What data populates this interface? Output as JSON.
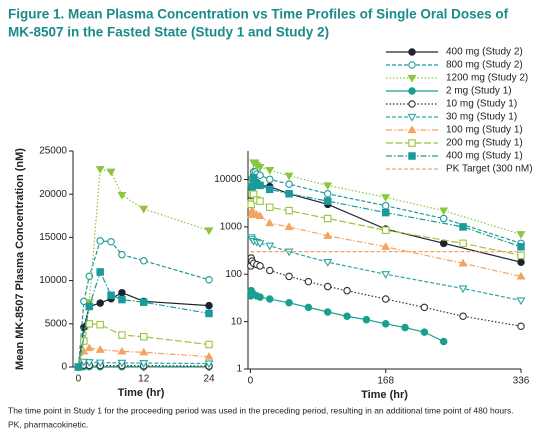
{
  "title_lines": [
    "Figure 1. Mean Plasma Concentration vs Time Profiles of Single Oral Doses of",
    "MK-8507 in the Fasted State (Study 1 and Study 2)"
  ],
  "footnote_lines": [
    "The time point in Study 1 for the proceeding period was used in the preceding period, resulting in an additional time point of 480 hours.",
    "PK, pharmacokinetic."
  ],
  "chart_data": [
    {
      "type": "line",
      "ylabel": "Mean MK-8507 Plasma Concentration (nM)",
      "xlabel": "Time (hr)",
      "xlim": [
        -1,
        24
      ],
      "xticks": [
        0,
        12,
        24
      ],
      "ylim": [
        0,
        25000
      ],
      "yticks": [
        0,
        5000,
        10000,
        15000,
        20000,
        25000
      ],
      "log": false,
      "series": [
        {
          "color": "#1d2430",
          "marker": "circle",
          "style": "solid",
          "x": [
            0,
            1,
            2,
            4,
            6,
            8,
            12,
            24
          ],
          "values": [
            0,
            4600,
            7000,
            7400,
            7900,
            8600,
            7600,
            7100
          ]
        },
        {
          "color": "#1b9a9a",
          "marker": "circle-open",
          "style": "dashed",
          "x": [
            0,
            1,
            2,
            4,
            6,
            8,
            12,
            24
          ],
          "values": [
            0,
            7600,
            10500,
            14600,
            14500,
            13000,
            12300,
            10100
          ]
        },
        {
          "color": "#8cc63f",
          "marker": "tri-down",
          "style": "dotted",
          "x": [
            0,
            2,
            4,
            6,
            8,
            12,
            24
          ],
          "values": [
            0,
            7500,
            22900,
            22600,
            19900,
            18300,
            15800
          ]
        },
        {
          "color": "#17a08f",
          "marker": "circle",
          "style": "solid",
          "x": [
            0,
            0.5,
            1,
            2,
            4,
            8,
            12,
            24
          ],
          "values": [
            0,
            35,
            45,
            40,
            38,
            35,
            33,
            30
          ]
        },
        {
          "color": "#333333",
          "marker": "circle-open",
          "style": "dotted",
          "x": [
            0,
            0.5,
            1,
            2,
            4,
            8,
            12,
            24
          ],
          "values": [
            0,
            150,
            220,
            190,
            170,
            160,
            150,
            120
          ]
        },
        {
          "color": "#2aa6a6",
          "marker": "tri-down-open",
          "style": "dashed",
          "x": [
            0,
            1,
            2,
            4,
            8,
            12,
            24
          ],
          "values": [
            0,
            600,
            550,
            500,
            480,
            450,
            400
          ]
        },
        {
          "color": "#f4a460",
          "marker": "tri-up",
          "style": "dashdot",
          "x": [
            0,
            1,
            2,
            4,
            8,
            12,
            24
          ],
          "values": [
            0,
            1800,
            2200,
            2000,
            1800,
            1700,
            1200
          ]
        },
        {
          "color": "#9bc53d",
          "marker": "square-open",
          "style": "longdash",
          "x": [
            0,
            1,
            2,
            4,
            8,
            12,
            24
          ],
          "values": [
            0,
            3000,
            5000,
            4900,
            3700,
            3500,
            2600
          ]
        },
        {
          "color": "#1a9b9b",
          "marker": "square",
          "style": "dashdot",
          "x": [
            0,
            2,
            4,
            6,
            8,
            12,
            24
          ],
          "values": [
            0,
            7000,
            11000,
            8300,
            7800,
            7500,
            6200
          ]
        }
      ]
    },
    {
      "type": "line",
      "xlabel": "Time (hr)",
      "legend": "upper right",
      "xlim": [
        -3,
        336
      ],
      "xticks": [
        0,
        168,
        336
      ],
      "ylim": [
        1,
        40000
      ],
      "yticks": [
        1,
        10,
        100,
        1000,
        10000
      ],
      "log": true,
      "series": [
        {
          "name": "400 mg (Study 2)",
          "color": "#1d2430",
          "marker": "circle",
          "style": "solid",
          "x": [
            1,
            2,
            4,
            6,
            8,
            12,
            24,
            48,
            96,
            168,
            240,
            336
          ],
          "values": [
            4600,
            7000,
            7400,
            7900,
            8600,
            7600,
            7100,
            5000,
            3000,
            900,
            450,
            180
          ]
        },
        {
          "name": "800 mg (Study 2)",
          "color": "#1b9a9a",
          "marker": "circle-open",
          "style": "dashed",
          "x": [
            1,
            2,
            4,
            6,
            8,
            12,
            24,
            48,
            96,
            168,
            240,
            336
          ],
          "values": [
            7600,
            10500,
            14600,
            14500,
            13000,
            12300,
            10100,
            8000,
            5000,
            2800,
            1500,
            450
          ]
        },
        {
          "name": "1200 mg (Study 2)",
          "color": "#8cc63f",
          "marker": "tri-down",
          "style": "dotted",
          "x": [
            2,
            4,
            6,
            8,
            12,
            24,
            48,
            96,
            168,
            240,
            336
          ],
          "values": [
            7500,
            22900,
            22600,
            19900,
            18300,
            15800,
            12000,
            7500,
            4200,
            2200,
            700
          ]
        },
        {
          "name": "2 mg (Study 1)",
          "color": "#17a08f",
          "marker": "circle",
          "style": "solid",
          "x": [
            0.5,
            1,
            2,
            4,
            8,
            12,
            24,
            48,
            72,
            96,
            120,
            144,
            168,
            192,
            216,
            240
          ],
          "values": [
            35,
            45,
            40,
            38,
            35,
            33,
            30,
            25,
            20,
            16,
            13,
            11,
            9,
            7.5,
            6,
            3.8
          ]
        },
        {
          "name": "10 mg (Study 1)",
          "color": "#333333",
          "marker": "circle-open",
          "style": "dotted",
          "x": [
            0.5,
            1,
            2,
            4,
            8,
            12,
            24,
            48,
            72,
            96,
            120,
            168,
            216,
            264,
            336
          ],
          "values": [
            150,
            220,
            190,
            170,
            160,
            150,
            120,
            90,
            70,
            55,
            45,
            30,
            20,
            13,
            8
          ]
        },
        {
          "name": "30 mg (Study 1)",
          "color": "#2aa6a6",
          "marker": "tri-down-open",
          "style": "dashed",
          "x": [
            1,
            2,
            4,
            8,
            12,
            24,
            48,
            96,
            168,
            264,
            336
          ],
          "values": [
            600,
            550,
            500,
            480,
            450,
            400,
            300,
            180,
            100,
            50,
            28
          ]
        },
        {
          "name": "100 mg (Study 1)",
          "color": "#f4a460",
          "marker": "tri-up",
          "style": "dashdot",
          "x": [
            1,
            2,
            4,
            8,
            12,
            24,
            48,
            96,
            168,
            264,
            336
          ],
          "values": [
            1800,
            2200,
            2000,
            1800,
            1700,
            1200,
            1000,
            650,
            380,
            170,
            90
          ]
        },
        {
          "name": "200 mg (Study 1)",
          "color": "#9bc53d",
          "marker": "square-open",
          "style": "longdash",
          "x": [
            1,
            2,
            4,
            8,
            12,
            24,
            48,
            96,
            168,
            264,
            336
          ],
          "values": [
            3000,
            5000,
            4900,
            3700,
            3500,
            2600,
            2200,
            1500,
            850,
            450,
            250
          ]
        },
        {
          "name": "400 mg (Study 1)",
          "color": "#1a9b9b",
          "marker": "square",
          "style": "dashdot",
          "x": [
            2,
            4,
            6,
            8,
            12,
            24,
            48,
            96,
            168,
            264,
            336
          ],
          "values": [
            7000,
            11000,
            8300,
            7800,
            7500,
            6200,
            5000,
            3500,
            2000,
            1000,
            380
          ]
        },
        {
          "name": "PK Target (300 nM)",
          "color": "#f5a26a",
          "marker": "none",
          "style": "dashed",
          "x": [
            0,
            336
          ],
          "values": [
            300,
            300
          ]
        }
      ]
    }
  ]
}
